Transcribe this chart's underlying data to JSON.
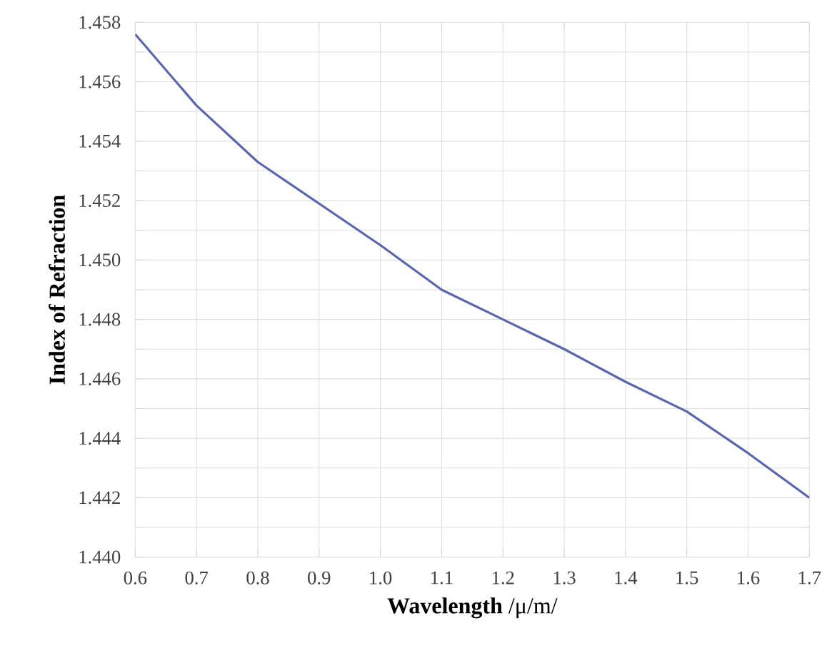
{
  "chart_data": {
    "type": "line",
    "xlabel": "**Wavelength** /μ/m/",
    "ylabel": "Index of Refraction",
    "x": [
      0.6,
      0.7,
      0.8,
      0.9,
      1.0,
      1.1,
      1.2,
      1.3,
      1.4,
      1.5,
      1.6,
      1.7
    ],
    "series": [
      {
        "color": "#5a67b0",
        "values": [
          1.4576,
          1.4552,
          1.4533,
          1.4519,
          1.4505,
          1.449,
          1.448,
          1.447,
          1.4459,
          1.4449,
          1.4435,
          1.442
        ]
      }
    ],
    "xlim": [
      0.6,
      1.7
    ],
    "ylim": [
      1.44,
      1.458
    ],
    "xticks": [
      {
        "value": 0.6,
        "label": "0.6"
      },
      {
        "value": 0.7,
        "label": "0.7"
      },
      {
        "value": 0.8,
        "label": "0.8"
      },
      {
        "value": 0.9,
        "label": "0.9"
      },
      {
        "value": 1.0,
        "label": "1.0"
      },
      {
        "value": 1.1,
        "label": "1.1"
      },
      {
        "value": 1.2,
        "label": "1.2"
      },
      {
        "value": 1.3,
        "label": "1.3"
      },
      {
        "value": 1.4,
        "label": "1.4"
      },
      {
        "value": 1.5,
        "label": "1.5"
      },
      {
        "value": 1.6,
        "label": "1.6"
      },
      {
        "value": 1.7,
        "label": "1.7"
      }
    ],
    "yticks": [
      {
        "value": 1.44,
        "label": "1.440"
      },
      {
        "value": 1.441,
        "label": null
      },
      {
        "value": 1.442,
        "label": "1.442"
      },
      {
        "value": 1.443,
        "label": null
      },
      {
        "value": 1.444,
        "label": "1.444"
      },
      {
        "value": 1.445,
        "label": null
      },
      {
        "value": 1.446,
        "label": "1.446"
      },
      {
        "value": 1.447,
        "label": null
      },
      {
        "value": 1.448,
        "label": "1.448"
      },
      {
        "value": 1.449,
        "label": null
      },
      {
        "value": 1.45,
        "label": "1.450"
      },
      {
        "value": 1.451,
        "label": null
      },
      {
        "value": 1.452,
        "label": "1.452"
      },
      {
        "value": 1.453,
        "label": null
      },
      {
        "value": 1.454,
        "label": "1.454"
      },
      {
        "value": 1.455,
        "label": null
      },
      {
        "value": 1.456,
        "label": "1.456"
      },
      {
        "value": 1.457,
        "label": null
      },
      {
        "value": 1.458,
        "label": "1.458"
      }
    ],
    "grid": true,
    "marker": "none",
    "line_style": "solid"
  }
}
